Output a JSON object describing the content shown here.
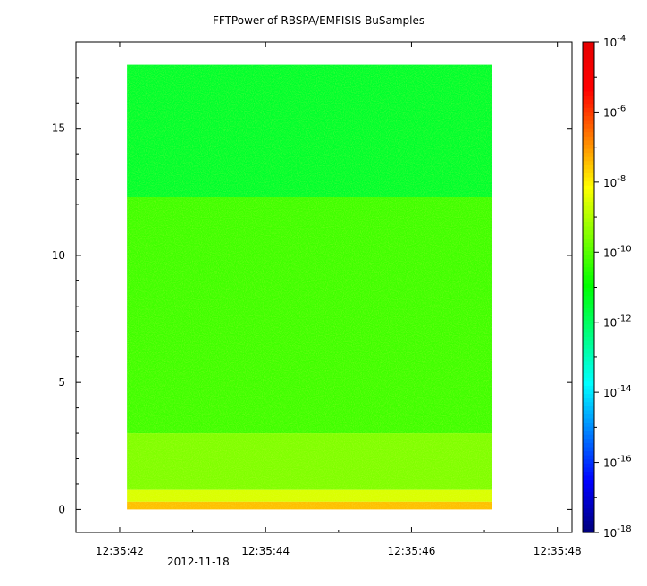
{
  "chart_data": {
    "type": "heatmap",
    "title": "FFTPower of RBSPA/EMFISIS  BuSamples",
    "xlabel": "",
    "ylabel": "",
    "x_tick_labels": [
      "12:35:42",
      "12:35:44",
      "12:35:46",
      "12:35:48"
    ],
    "x_date_label": "2012-11-18",
    "x_range": [
      "12:35:41.4",
      "12:35:48.2"
    ],
    "y_ticks": [
      0,
      5,
      10,
      15
    ],
    "y_range": [
      -0.9,
      18.4
    ],
    "colorbar": {
      "scale": "log",
      "range": [
        1e-18,
        0.0001
      ],
      "tick_bases": [
        "10",
        "10",
        "10",
        "10",
        "10",
        "10",
        "10",
        "10"
      ],
      "tick_exponents": [
        "-4",
        "-6",
        "-8",
        "-10",
        "-12",
        "-14",
        "-16",
        "-18"
      ],
      "colormap": [
        "#00007f",
        "#0000ff",
        "#007fff",
        "#00ffff",
        "#00ff7f",
        "#00ff00",
        "#7fff00",
        "#ffff00",
        "#ff7f00",
        "#ff0000",
        "#e60000"
      ]
    },
    "data_extent": {
      "time_start": "12:35:42.1",
      "time_end": "12:35:47.1",
      "freq_min": 0,
      "freq_max": 17.5
    },
    "bands": [
      {
        "freq_from": 12.3,
        "freq_to": 17.5,
        "log10_power": -11.5
      },
      {
        "freq_from": 3.0,
        "freq_to": 12.3,
        "log10_power": -10.3
      },
      {
        "freq_from": 0.8,
        "freq_to": 3.0,
        "log10_power": -9.6
      },
      {
        "freq_from": 0.3,
        "freq_to": 0.8,
        "log10_power": -8.6
      },
      {
        "freq_from": 0.0,
        "freq_to": 0.3,
        "log10_power": -7.5
      }
    ]
  }
}
